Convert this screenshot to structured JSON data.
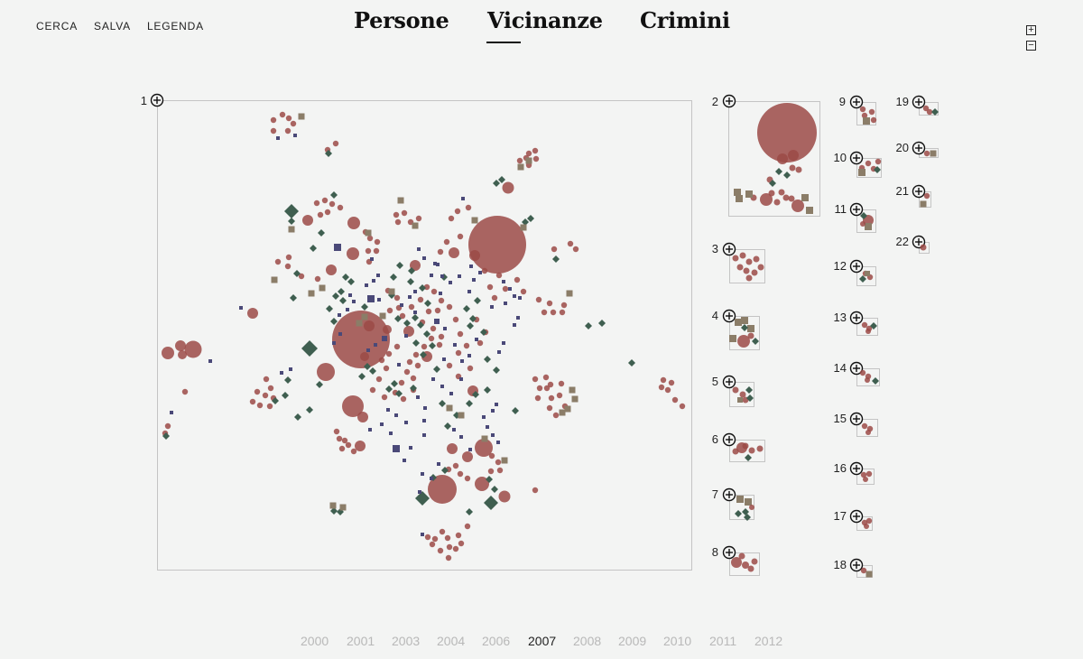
{
  "nav": {
    "items": [
      "CERCA",
      "SALVA",
      "LEGENDA"
    ]
  },
  "tabs": [
    {
      "label": "Persone",
      "active": false
    },
    {
      "label": "Vicinanze",
      "active": true
    },
    {
      "label": "Crimini",
      "active": false
    }
  ],
  "zoom": {
    "in_label": "+",
    "out_label": "−"
  },
  "clusters": [
    "1",
    "2",
    "3",
    "4",
    "5",
    "6",
    "7",
    "8",
    "9",
    "10",
    "11",
    "12",
    "13",
    "14",
    "15",
    "16",
    "17",
    "18",
    "19",
    "20",
    "21",
    "22"
  ],
  "timeline": {
    "years": [
      "2000",
      "2001",
      "2003",
      "2004",
      "2006",
      "2007",
      "2008",
      "2009",
      "2010",
      "2011",
      "2012"
    ],
    "active": "2007"
  },
  "colors": {
    "person": "#9b4a46",
    "crime": "#3f5f50",
    "place": "#8b7d68",
    "event": "#4a4978",
    "background": "#f3f4f3"
  }
}
